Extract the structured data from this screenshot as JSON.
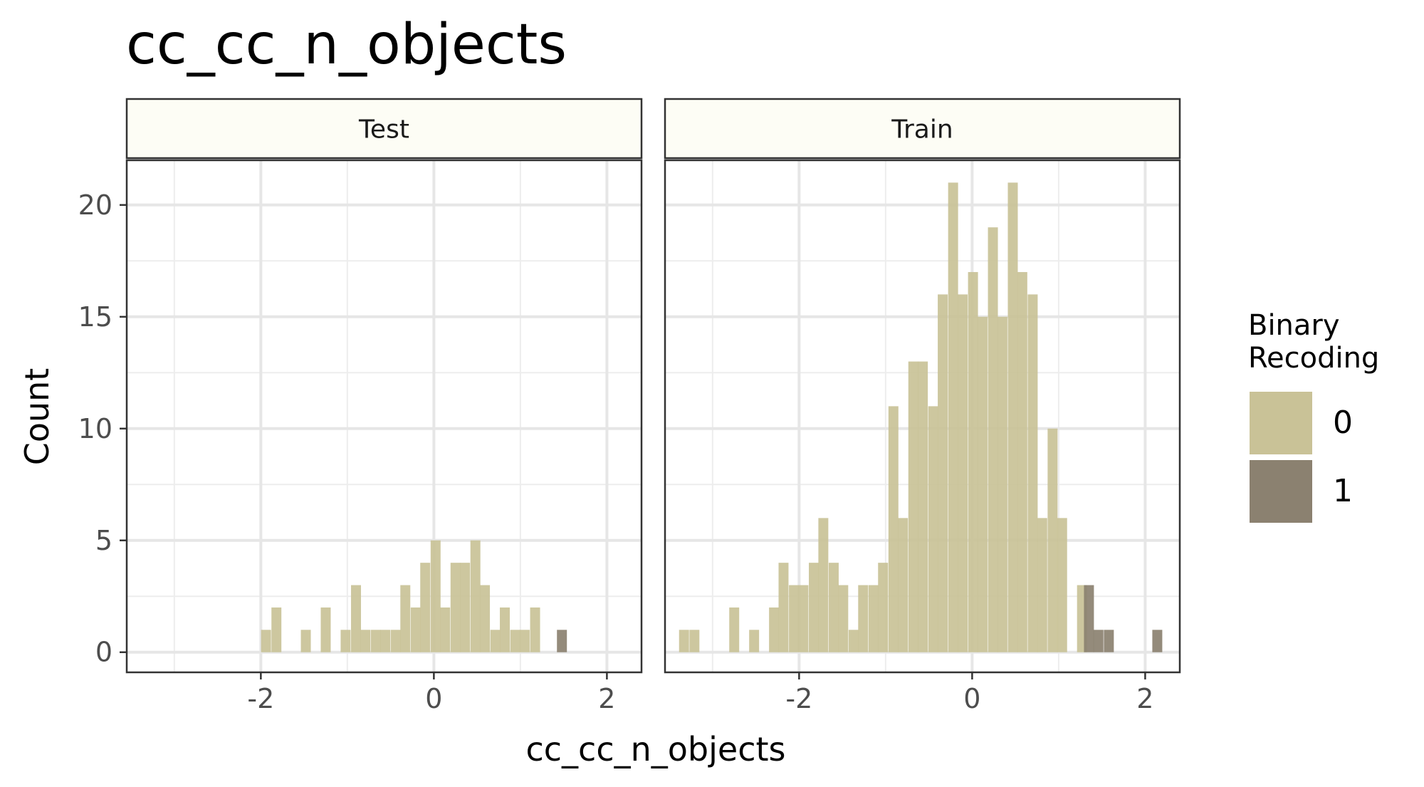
{
  "chart_data": {
    "type": "bar",
    "subtype": "faceted-histogram",
    "title": "cc_cc_n_objects",
    "xlabel": "cc_cc_n_objects",
    "ylabel": "Count",
    "xlim": [
      -3.55,
      2.4
    ],
    "ylim": [
      -0.9,
      22
    ],
    "x_ticks": [
      "-2",
      "0",
      "2"
    ],
    "x_tick_values": [
      -2,
      0,
      2
    ],
    "y_ticks": [
      "0",
      "5",
      "10",
      "15",
      "20"
    ],
    "y_tick_values": [
      0,
      5,
      10,
      15,
      20
    ],
    "bin_width": 0.115,
    "grid": true,
    "legend": {
      "title_line1": "Binary",
      "title_line2": "Recoding",
      "placement": "right",
      "entries": [
        {
          "label": "0",
          "color": "#c9c297"
        },
        {
          "label": "1",
          "color": "#8b8170"
        }
      ]
    },
    "facets": [
      {
        "label": "Test",
        "bars": [
          {
            "x": -1.94,
            "count": 1,
            "group": "0"
          },
          {
            "x": -1.82,
            "count": 2,
            "group": "0"
          },
          {
            "x": -1.48,
            "count": 1,
            "group": "0"
          },
          {
            "x": -1.25,
            "count": 2,
            "group": "0"
          },
          {
            "x": -1.02,
            "count": 1,
            "group": "0"
          },
          {
            "x": -0.9,
            "count": 3,
            "group": "0"
          },
          {
            "x": -0.79,
            "count": 1,
            "group": "0"
          },
          {
            "x": -0.67,
            "count": 1,
            "group": "0"
          },
          {
            "x": -0.56,
            "count": 1,
            "group": "0"
          },
          {
            "x": -0.44,
            "count": 1,
            "group": "0"
          },
          {
            "x": -0.33,
            "count": 3,
            "group": "0"
          },
          {
            "x": -0.21,
            "count": 2,
            "group": "0"
          },
          {
            "x": -0.1,
            "count": 4,
            "group": "0"
          },
          {
            "x": 0.02,
            "count": 5,
            "group": "0"
          },
          {
            "x": 0.13,
            "count": 2,
            "group": "0"
          },
          {
            "x": 0.25,
            "count": 4,
            "group": "0"
          },
          {
            "x": 0.36,
            "count": 4,
            "group": "0"
          },
          {
            "x": 0.48,
            "count": 5,
            "group": "0"
          },
          {
            "x": 0.59,
            "count": 3,
            "group": "0"
          },
          {
            "x": 0.71,
            "count": 1,
            "group": "0"
          },
          {
            "x": 0.82,
            "count": 2,
            "group": "0"
          },
          {
            "x": 0.94,
            "count": 1,
            "group": "0"
          },
          {
            "x": 1.05,
            "count": 1,
            "group": "0"
          },
          {
            "x": 1.17,
            "count": 2,
            "group": "0"
          },
          {
            "x": 1.48,
            "count": 1,
            "group": "1"
          }
        ]
      },
      {
        "label": "Train",
        "bars": [
          {
            "x": -3.33,
            "count": 1,
            "group": "0"
          },
          {
            "x": -3.21,
            "count": 1,
            "group": "0"
          },
          {
            "x": -2.75,
            "count": 2,
            "group": "0"
          },
          {
            "x": -2.52,
            "count": 1,
            "group": "0"
          },
          {
            "x": -2.29,
            "count": 2,
            "group": "0"
          },
          {
            "x": -2.18,
            "count": 4,
            "group": "0"
          },
          {
            "x": -2.06,
            "count": 3,
            "group": "0"
          },
          {
            "x": -1.95,
            "count": 3,
            "group": "0"
          },
          {
            "x": -1.83,
            "count": 4,
            "group": "0"
          },
          {
            "x": -1.72,
            "count": 6,
            "group": "0"
          },
          {
            "x": -1.6,
            "count": 4,
            "group": "0"
          },
          {
            "x": -1.49,
            "count": 3,
            "group": "0"
          },
          {
            "x": -1.37,
            "count": 1,
            "group": "0"
          },
          {
            "x": -1.26,
            "count": 3,
            "group": "0"
          },
          {
            "x": -1.14,
            "count": 3,
            "group": "0"
          },
          {
            "x": -1.03,
            "count": 4,
            "group": "0"
          },
          {
            "x": -0.91,
            "count": 11,
            "group": "0"
          },
          {
            "x": -0.8,
            "count": 6,
            "group": "0"
          },
          {
            "x": -0.68,
            "count": 13,
            "group": "0"
          },
          {
            "x": -0.57,
            "count": 13,
            "group": "0"
          },
          {
            "x": -0.45,
            "count": 11,
            "group": "0"
          },
          {
            "x": -0.34,
            "count": 16,
            "group": "0"
          },
          {
            "x": -0.22,
            "count": 21,
            "group": "0"
          },
          {
            "x": -0.11,
            "count": 16,
            "group": "0"
          },
          {
            "x": 0.01,
            "count": 17,
            "group": "0"
          },
          {
            "x": 0.12,
            "count": 15,
            "group": "0"
          },
          {
            "x": 0.24,
            "count": 19,
            "group": "0"
          },
          {
            "x": 0.35,
            "count": 15,
            "group": "0"
          },
          {
            "x": 0.47,
            "count": 21,
            "group": "0"
          },
          {
            "x": 0.58,
            "count": 17,
            "group": "0"
          },
          {
            "x": 0.7,
            "count": 16,
            "group": "0"
          },
          {
            "x": 0.81,
            "count": 6,
            "group": "0"
          },
          {
            "x": 0.93,
            "count": 10,
            "group": "0"
          },
          {
            "x": 1.04,
            "count": 6,
            "group": "0"
          },
          {
            "x": 1.27,
            "count": 3,
            "group": "0"
          },
          {
            "x": 1.35,
            "count": 3,
            "group": "1"
          },
          {
            "x": 1.46,
            "count": 1,
            "group": "1"
          },
          {
            "x": 1.58,
            "count": 1,
            "group": "1"
          },
          {
            "x": 2.14,
            "count": 1,
            "group": "1"
          }
        ]
      }
    ]
  }
}
